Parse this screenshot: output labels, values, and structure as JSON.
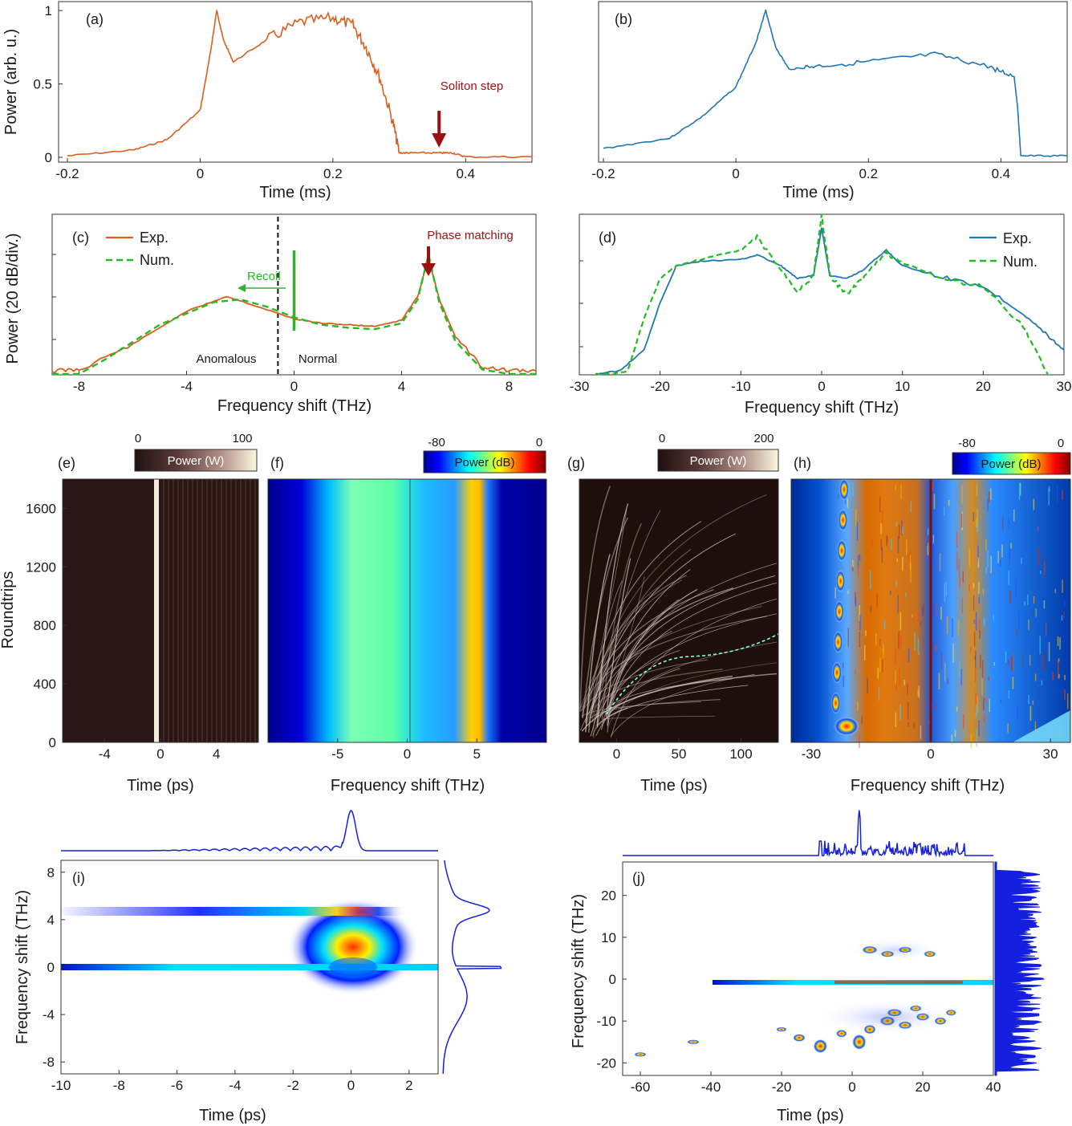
{
  "colors": {
    "experiment": "#d95f1e",
    "numeric": "#22bb22",
    "blue": "#1f77b4",
    "annotation": "#9b1111",
    "profile": "#1420dd"
  },
  "chart_data": [
    {
      "id": "a",
      "type": "line",
      "panel_label": "(a)",
      "xlabel": "Time (ms)",
      "ylabel": "Power (arb. u.)",
      "xlim": [
        -0.2,
        0.5
      ],
      "ylim": [
        0,
        1.05
      ],
      "xticks": [
        "-0.2",
        "0",
        "0.2",
        "0.4"
      ],
      "yticks": [
        "0",
        "0.5",
        "1"
      ],
      "annotation": "Soliton step",
      "annotation_x": 0.36,
      "series": [
        {
          "color": "#d95f1e",
          "x": [
            -0.2,
            -0.1,
            -0.05,
            0,
            0.015,
            0.025,
            0.035,
            0.05,
            0.1,
            0.15,
            0.2,
            0.23,
            0.25,
            0.27,
            0.29,
            0.3,
            0.32,
            0.36,
            0.38,
            0.4,
            0.5
          ],
          "y": [
            0.01,
            0.05,
            0.12,
            0.32,
            0.7,
            1.0,
            0.8,
            0.65,
            0.8,
            0.92,
            0.95,
            0.9,
            0.75,
            0.55,
            0.25,
            0.03,
            0.03,
            0.03,
            0.03,
            0.003,
            0.003
          ]
        }
      ]
    },
    {
      "id": "b",
      "type": "line",
      "panel_label": "(b)",
      "xlabel": "Time (ms)",
      "xlim": [
        -0.2,
        0.5
      ],
      "ylim": [
        0,
        1.05
      ],
      "xticks": [
        "-0.2",
        "0",
        "0.2",
        "0.4"
      ],
      "series": [
        {
          "color": "#1f77b4",
          "x": [
            -0.2,
            -0.1,
            -0.05,
            0,
            0.03,
            0.045,
            0.06,
            0.08,
            0.12,
            0.2,
            0.3,
            0.38,
            0.42,
            0.425,
            0.43,
            0.5
          ],
          "y": [
            0.06,
            0.13,
            0.28,
            0.48,
            0.78,
            1.0,
            0.75,
            0.6,
            0.62,
            0.65,
            0.7,
            0.62,
            0.55,
            0.35,
            0.01,
            0.01
          ]
        }
      ]
    },
    {
      "id": "c",
      "type": "line",
      "panel_label": "(c)",
      "xlabel": "Frequency shift (THz)",
      "ylabel": "Power (20 dB/div.)",
      "xlim": [
        -9,
        9
      ],
      "ylim": [
        0,
        100
      ],
      "xticks": [
        "-8",
        "-4",
        "0",
        "4",
        "8"
      ],
      "annotations": [
        "Phase matching",
        "Recoil",
        "Anomalous",
        "Normal"
      ],
      "divider_x": -0.6,
      "peak_x": 5,
      "series": [
        {
          "name": "Exp.",
          "color": "#d95f1e",
          "x": [
            -9,
            -8,
            -6,
            -4,
            -2.5,
            -1,
            0,
            1,
            2,
            3,
            4,
            4.6,
            5,
            5.4,
            6,
            7,
            8,
            9
          ],
          "y": [
            2,
            3,
            20,
            42,
            52,
            43,
            37,
            34,
            33,
            32,
            36,
            52,
            78,
            50,
            25,
            5,
            2,
            2
          ]
        },
        {
          "name": "Num.",
          "color": "#22bb22",
          "x": [
            -9,
            -8,
            -7,
            -5,
            -3,
            -2,
            -1,
            0,
            1,
            2,
            3,
            4,
            4.6,
            5,
            5.4,
            6,
            7,
            8,
            9
          ],
          "y": [
            0,
            0,
            10,
            33,
            48,
            50,
            45,
            38,
            33,
            31,
            30,
            34,
            50,
            80,
            48,
            22,
            3,
            0,
            0
          ]
        }
      ]
    },
    {
      "id": "d",
      "type": "line",
      "panel_label": "(d)",
      "xlabel": "Frequency shift (THz)",
      "xlim": [
        -30,
        30
      ],
      "ylim": [
        0,
        100
      ],
      "xticks": [
        "-30",
        "-20",
        "-10",
        "0",
        "10",
        "20",
        "30"
      ],
      "series": [
        {
          "name": "Exp.",
          "color": "#1f77b4",
          "x": [
            -28,
            -25,
            -22,
            -20,
            -18,
            -15,
            -10,
            -8,
            -5,
            -3,
            -1,
            0,
            1,
            3,
            5,
            8,
            10,
            15,
            20,
            25,
            28,
            30
          ],
          "y": [
            0,
            2,
            15,
            45,
            68,
            71,
            72,
            75,
            68,
            60,
            62,
            92,
            62,
            60,
            65,
            78,
            68,
            61,
            55,
            38,
            24,
            15
          ]
        },
        {
          "name": "Num.",
          "color": "#22bb22",
          "x": [
            -28,
            -26,
            -24,
            -22,
            -20,
            -18,
            -15,
            -10,
            -8,
            -5,
            -3,
            -1,
            0,
            1,
            3,
            5,
            8,
            10,
            15,
            20,
            25,
            28
          ],
          "y": [
            0,
            0,
            2,
            35,
            60,
            68,
            72,
            78,
            86,
            65,
            52,
            62,
            100,
            62,
            50,
            60,
            76,
            70,
            60,
            55,
            30,
            0
          ]
        }
      ]
    },
    {
      "id": "e",
      "type": "heatmap",
      "panel_label": "(e)",
      "xlabel": "Time (ps)",
      "ylabel": "Roundtrips",
      "xlim": [
        -7,
        7
      ],
      "ylim": [
        0,
        1800
      ],
      "xticks": [
        "-4",
        "0",
        "4"
      ],
      "yticks": [
        "0",
        "400",
        "800",
        "1200",
        "1600"
      ],
      "colorbar": {
        "label": "Power (W)",
        "min": "0",
        "max": "100"
      }
    },
    {
      "id": "f",
      "type": "heatmap",
      "panel_label": "(f)",
      "xlabel": "Frequency shift (THz)",
      "xlim": [
        -10,
        10
      ],
      "xticks": [
        "-5",
        "0",
        "5"
      ],
      "colorbar": {
        "label": "Power (dB)",
        "min": "-80",
        "max": "0"
      }
    },
    {
      "id": "g",
      "type": "heatmap",
      "panel_label": "(g)",
      "xlabel": "Time (ps)",
      "xlim": [
        -30,
        130
      ],
      "xticks": [
        "0",
        "50",
        "100"
      ],
      "colorbar": {
        "label": "Power (W)",
        "min": "0",
        "max": "200"
      }
    },
    {
      "id": "h",
      "type": "heatmap",
      "panel_label": "(h)",
      "xlabel": "Frequency shift (THz)",
      "xlim": [
        -35,
        35
      ],
      "xticks": [
        "-30",
        "0",
        "30"
      ],
      "colorbar": {
        "label": "Power (dB)",
        "min": "-80",
        "max": "0"
      }
    },
    {
      "id": "i",
      "type": "heatmap",
      "panel_label": "(i)",
      "xlabel": "Time (ps)",
      "ylabel": "Frequency shift (THz)",
      "xlim": [
        -10,
        3
      ],
      "ylim": [
        -9,
        9
      ],
      "xticks": [
        "-10",
        "-8",
        "-6",
        "-4",
        "-2",
        "0",
        "2"
      ],
      "yticks": [
        "-8",
        "-4",
        "0",
        "4",
        "8"
      ]
    },
    {
      "id": "j",
      "type": "heatmap",
      "panel_label": "(j)",
      "xlabel": "Time (ps)",
      "ylabel": "Frequency shift (THz)",
      "xlim": [
        -65,
        40
      ],
      "ylim": [
        -23,
        28
      ],
      "xticks": [
        "-60",
        "-40",
        "-20",
        "0",
        "20",
        "40"
      ],
      "yticks": [
        "-20",
        "-10",
        "0",
        "10",
        "20"
      ]
    }
  ]
}
